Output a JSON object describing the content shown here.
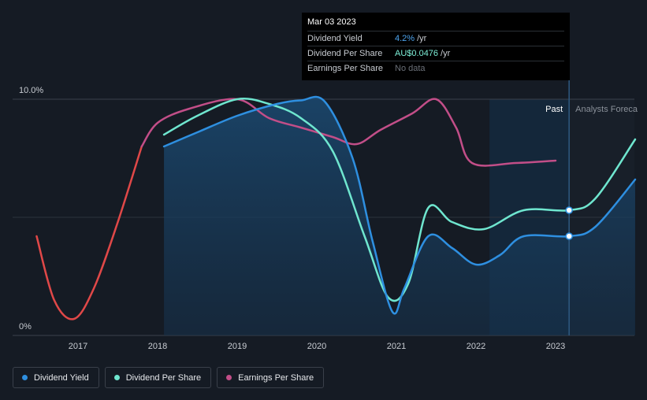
{
  "tooltip": {
    "date": "Mar 03 2023",
    "rows": [
      {
        "label": "Dividend Yield",
        "value": "4.2%",
        "unit": "/yr"
      },
      {
        "label": "Dividend Per Share",
        "value": "AU$0.0476",
        "unit": "/yr"
      },
      {
        "label": "Earnings Per Share",
        "value": "No data",
        "unit": ""
      }
    ]
  },
  "regions": {
    "past": "Past",
    "forecast": "Analysts Foreca"
  },
  "legend": [
    {
      "label": "Dividend Yield",
      "color": "#2e8fe0"
    },
    {
      "label": "Dividend Per Share",
      "color": "#6fe6cf"
    },
    {
      "label": "Earnings Per Share",
      "color": "#c24e88"
    }
  ],
  "chart_data": {
    "type": "line",
    "y_tick_labels": [
      "10.0%",
      "0%"
    ],
    "ylim": [
      0,
      10
    ],
    "xlim": [
      2016.5,
      2024.0
    ],
    "x_ticks": [
      2017,
      2018,
      2019,
      2020,
      2021,
      2022,
      2023
    ],
    "x_tick_labels": [
      "2017",
      "2018",
      "2019",
      "2020",
      "2021",
      "2022",
      "2023"
    ],
    "series": [
      {
        "name": "Dividend Yield",
        "color": "#2e8fe0",
        "area": true,
        "points": [
          [
            2018.08,
            8.0
          ],
          [
            2018.5,
            8.6
          ],
          [
            2019.0,
            9.3
          ],
          [
            2019.5,
            9.8
          ],
          [
            2019.8,
            9.95
          ],
          [
            2020.1,
            9.9
          ],
          [
            2020.45,
            7.5
          ],
          [
            2020.7,
            4.0
          ],
          [
            2020.95,
            1.0
          ],
          [
            2021.1,
            2.0
          ],
          [
            2021.4,
            4.2
          ],
          [
            2021.7,
            3.7
          ],
          [
            2022.0,
            3.0
          ],
          [
            2022.3,
            3.4
          ],
          [
            2022.6,
            4.2
          ],
          [
            2023.17,
            4.2
          ],
          [
            2023.5,
            4.6
          ],
          [
            2024.0,
            6.6
          ]
        ]
      },
      {
        "name": "Dividend Per Share",
        "color": "#6fe6cf",
        "area": false,
        "points": [
          [
            2018.08,
            8.5
          ],
          [
            2018.5,
            9.3
          ],
          [
            2019.0,
            10.0
          ],
          [
            2019.4,
            9.8
          ],
          [
            2019.8,
            9.2
          ],
          [
            2020.2,
            7.8
          ],
          [
            2020.6,
            4.2
          ],
          [
            2020.9,
            1.6
          ],
          [
            2021.15,
            2.2
          ],
          [
            2021.4,
            5.4
          ],
          [
            2021.7,
            4.8
          ],
          [
            2022.1,
            4.5
          ],
          [
            2022.6,
            5.3
          ],
          [
            2023.17,
            5.3
          ],
          [
            2023.5,
            5.8
          ],
          [
            2024.0,
            8.3
          ]
        ]
      },
      {
        "name": "Earnings Per Share",
        "color": "#c24e88",
        "segment_colors": {
          "negative": "#e04848",
          "positive": "#c24e88"
        },
        "points": [
          [
            2016.48,
            4.2
          ],
          [
            2016.7,
            1.5
          ],
          [
            2016.95,
            0.7
          ],
          [
            2017.2,
            2.0
          ],
          [
            2017.5,
            4.8
          ],
          [
            2017.8,
            8.0
          ],
          [
            2018.0,
            9.0
          ],
          [
            2018.4,
            9.6
          ],
          [
            2019.0,
            10.0
          ],
          [
            2019.4,
            9.2
          ],
          [
            2019.8,
            8.8
          ],
          [
            2020.2,
            8.4
          ],
          [
            2020.5,
            8.1
          ],
          [
            2020.8,
            8.7
          ],
          [
            2021.2,
            9.4
          ],
          [
            2021.5,
            10.0
          ],
          [
            2021.75,
            8.8
          ],
          [
            2021.95,
            7.3
          ],
          [
            2022.5,
            7.3
          ],
          [
            2023.0,
            7.4
          ]
        ]
      }
    ],
    "tooltip_x": 2023.17,
    "tooltip_markers": [
      {
        "series": "Dividend Per Share",
        "y": 5.3
      },
      {
        "series": "Dividend Yield",
        "y": 4.2
      }
    ]
  }
}
